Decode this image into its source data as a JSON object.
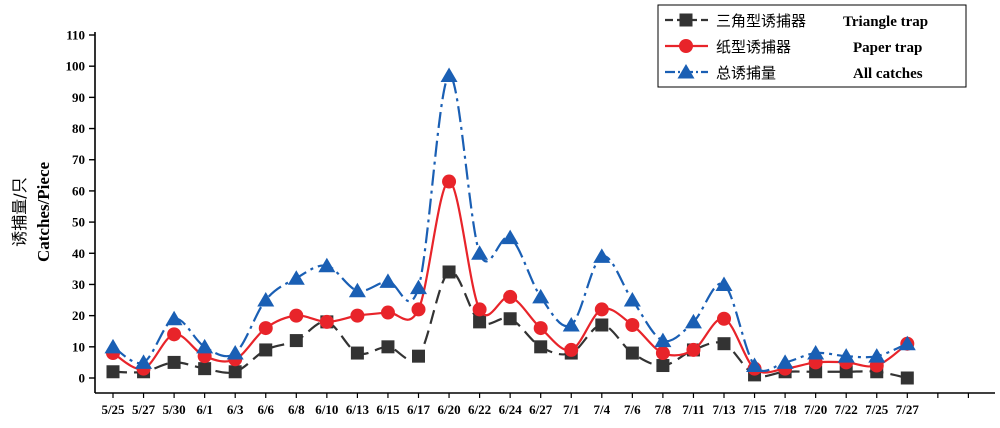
{
  "chart_data": {
    "type": "line",
    "ylabel_cn": "诱捕量/只",
    "ylabel_en": "Catches/Piece",
    "xlabel": "",
    "ylim": [
      0,
      110
    ],
    "yticks": [
      0,
      10,
      20,
      30,
      40,
      50,
      60,
      70,
      80,
      90,
      100,
      110
    ],
    "categories": [
      "5/25",
      "5/27",
      "5/30",
      "6/1",
      "6/3",
      "6/6",
      "6/8",
      "6/10",
      "6/13",
      "6/15",
      "6/17",
      "6/20",
      "6/22",
      "6/24",
      "6/27",
      "7/1",
      "7/4",
      "7/6",
      "7/8",
      "7/11",
      "7/13",
      "7/15",
      "7/18",
      "7/20",
      "7/22",
      "7/25",
      "7/27"
    ],
    "legend_position": "top-right",
    "grid": false,
    "series": [
      {
        "name_cn": "三角型诱捕器",
        "name_en": "Triangle trap",
        "color": "#333333",
        "marker": "square",
        "line": "dash",
        "values": [
          2,
          2,
          5,
          3,
          2,
          9,
          12,
          18,
          8,
          10,
          7,
          34,
          18,
          19,
          10,
          8,
          17,
          8,
          4,
          9,
          11,
          1,
          2,
          2,
          2,
          2,
          0
        ]
      },
      {
        "name_cn": "纸型诱捕器",
        "name_en": "Paper trap",
        "color": "#e8242a",
        "marker": "circle",
        "line": "solid",
        "values": [
          8,
          3,
          14,
          7,
          6,
          16,
          20,
          18,
          20,
          21,
          22,
          63,
          22,
          26,
          16,
          9,
          22,
          17,
          8,
          9,
          19,
          3,
          3,
          5,
          5,
          4,
          11
        ]
      },
      {
        "name_cn": "总诱捕量",
        "name_en": "All catches",
        "color": "#1a5fb4",
        "marker": "triangle",
        "line": "dashdot",
        "values": [
          10,
          5,
          19,
          10,
          8,
          25,
          32,
          36,
          28,
          31,
          29,
          97,
          40,
          45,
          26,
          17,
          39,
          25,
          12,
          18,
          30,
          4,
          5,
          8,
          7,
          7,
          11
        ]
      }
    ]
  }
}
